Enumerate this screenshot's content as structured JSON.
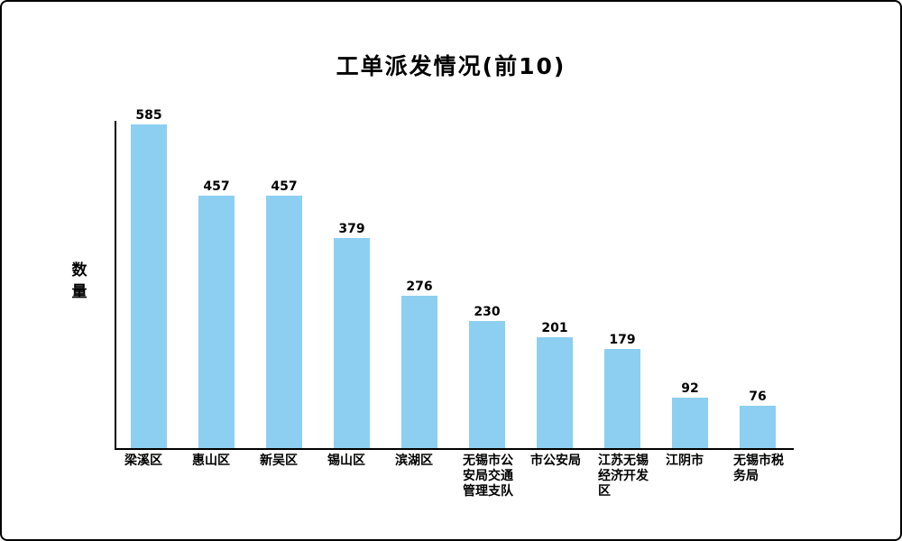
{
  "chart_data": {
    "type": "bar",
    "title": "工单派发情况(前10)",
    "xlabel": "",
    "ylabel": "数量",
    "categories": [
      "梁溪区",
      "惠山区",
      "新吴区",
      "锡山区",
      "滨湖区",
      "无锡市公安局交通管理支队",
      "市公安局",
      "江苏无锡经济开发区",
      "江阴市",
      "无锡市税务局"
    ],
    "values": [
      585,
      457,
      457,
      379,
      276,
      230,
      201,
      179,
      92,
      76
    ],
    "ylim": [
      0,
      600
    ],
    "grid": false,
    "legend_position": "none",
    "value_labels_shown": true,
    "bar_color": "#8CCFF0",
    "axis_color": "#000000",
    "text_color": "#000000",
    "background_color": "#FFFFFF"
  }
}
